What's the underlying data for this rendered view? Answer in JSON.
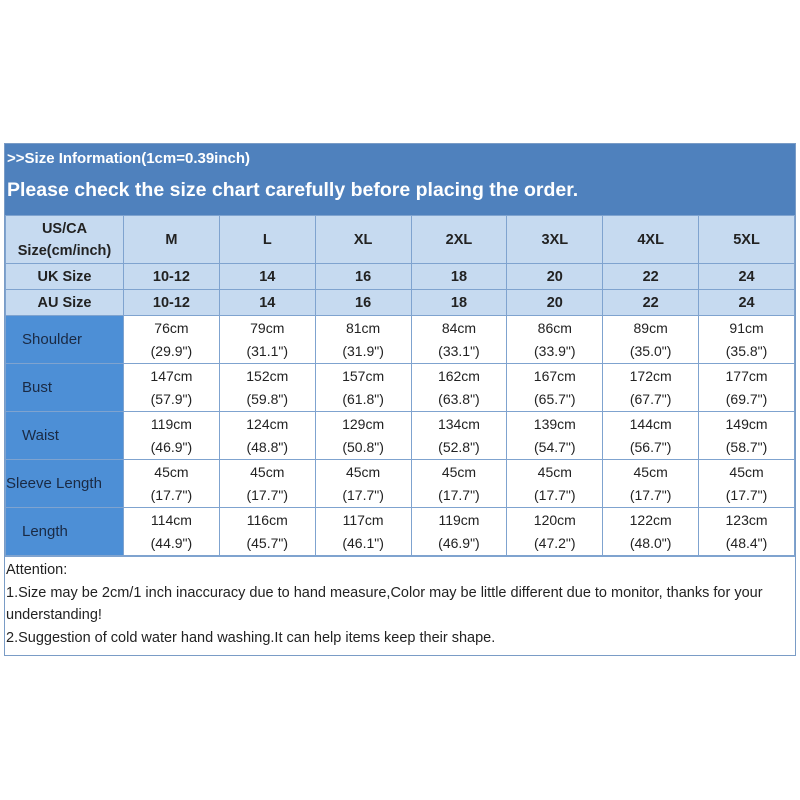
{
  "header": {
    "info": ">>Size Information(1cm=0.39inch)",
    "notice": "Please check the size chart carefully before placing the order."
  },
  "table": {
    "corner": "US/CA Size(cm/inch)",
    "sizes": [
      "M",
      "L",
      "XL",
      "2XL",
      "3XL",
      "4XL",
      "5XL"
    ],
    "uk": {
      "label": "UK Size",
      "values": [
        "10-12",
        "14",
        "16",
        "18",
        "20",
        "22",
        "24"
      ]
    },
    "au": {
      "label": "AU Size",
      "values": [
        "10-12",
        "14",
        "16",
        "18",
        "20",
        "22",
        "24"
      ]
    },
    "rows": [
      {
        "label": "Shoulder",
        "cm": [
          "76cm",
          "79cm",
          "81cm",
          "84cm",
          "86cm",
          "89cm",
          "91cm"
        ],
        "inch": [
          "(29.9\")",
          "(31.1\")",
          "(31.9\")",
          "(33.1\")",
          "(33.9\")",
          "(35.0\")",
          "(35.8\")"
        ]
      },
      {
        "label": "Bust",
        "cm": [
          "147cm",
          "152cm",
          "157cm",
          "162cm",
          "167cm",
          "172cm",
          "177cm"
        ],
        "inch": [
          "(57.9\")",
          "(59.8\")",
          "(61.8\")",
          "(63.8\")",
          "(65.7\")",
          "(67.7\")",
          "(69.7\")"
        ]
      },
      {
        "label": "Waist",
        "cm": [
          "119cm",
          "124cm",
          "129cm",
          "134cm",
          "139cm",
          "144cm",
          "149cm"
        ],
        "inch": [
          "(46.9\")",
          "(48.8\")",
          "(50.8\")",
          "(52.8\")",
          "(54.7\")",
          "(56.7\")",
          "(58.7\")"
        ]
      },
      {
        "label": "Sleeve Length",
        "cm": [
          "45cm",
          "45cm",
          "45cm",
          "45cm",
          "45cm",
          "45cm",
          "45cm"
        ],
        "inch": [
          "(17.7\")",
          "(17.7\")",
          "(17.7\")",
          "(17.7\")",
          "(17.7\")",
          "(17.7\")",
          "(17.7\")"
        ]
      },
      {
        "label": "Length",
        "cm": [
          "114cm",
          "116cm",
          "117cm",
          "119cm",
          "120cm",
          "122cm",
          "123cm"
        ],
        "inch": [
          "(44.9\")",
          "(45.7\")",
          "(46.1\")",
          "(46.9\")",
          "(47.2\")",
          "(48.0\")",
          "(48.4\")"
        ]
      }
    ]
  },
  "attention": {
    "title": "Attention:",
    "lines": [
      "1.Size may be 2cm/1 inch inaccuracy due to hand measure,Color may be little different due to monitor, thanks for your understanding!",
      "2.Suggestion of cold water hand washing.It can help items keep their shape."
    ]
  },
  "colors": {
    "band": "#4f81bd",
    "header_cells": "#c6daf0",
    "label_column": "#4d8fd6"
  }
}
